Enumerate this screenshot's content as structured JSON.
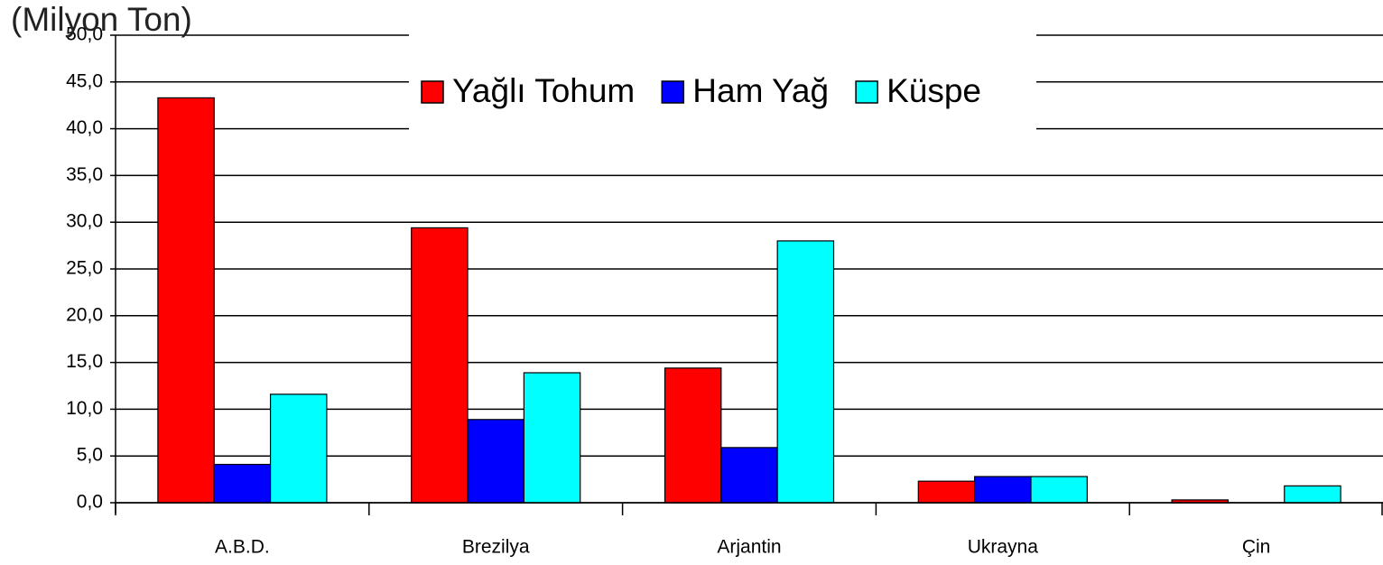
{
  "chart_data": {
    "type": "bar",
    "title": "(Milyon Ton)",
    "categories": [
      "A.B.D.",
      "Brezilya",
      "Arjantin",
      "Ukrayna",
      "Çin"
    ],
    "series": [
      {
        "name": "Yağlı Tohum",
        "color": "#ff0000",
        "values": [
          43.3,
          29.4,
          14.4,
          2.3,
          0.3
        ]
      },
      {
        "name": "Ham Yağ",
        "color": "#0000ff",
        "values": [
          4.1,
          8.9,
          5.9,
          2.8,
          0
        ]
      },
      {
        "name": "Küspe",
        "color": "#00ffff",
        "values": [
          11.6,
          13.9,
          28.0,
          2.8,
          1.8
        ]
      }
    ],
    "ylim": [
      0,
      50
    ],
    "yticks": [
      {
        "value": 0,
        "label": "0,0"
      },
      {
        "value": 5,
        "label": "5,0"
      },
      {
        "value": 10,
        "label": "10,0"
      },
      {
        "value": 15,
        "label": "15,0"
      },
      {
        "value": 20,
        "label": "20,0"
      },
      {
        "value": 25,
        "label": "25,0"
      },
      {
        "value": 30,
        "label": "30,0"
      },
      {
        "value": 35,
        "label": "35,0"
      },
      {
        "value": 40,
        "label": "40,0"
      },
      {
        "value": 45,
        "label": "45,0"
      },
      {
        "value": 50,
        "label": "50,0"
      }
    ],
    "grid": true,
    "legend": "top"
  }
}
